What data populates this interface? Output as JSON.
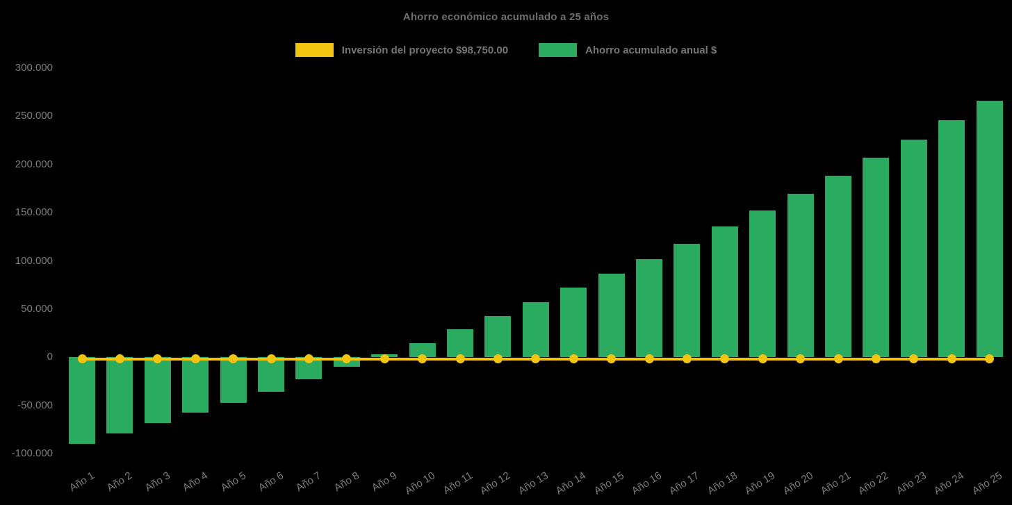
{
  "title": "Ahorro económico acumulado a 25 años",
  "colors": {
    "background": "#000000",
    "investment_yellow": "#F2C40F",
    "savings_green": "#2BAB5F",
    "title_text": "#6e6e6e",
    "axis_text": "#7d7d7d",
    "legend_text": "#757575"
  },
  "legend": {
    "items": [
      {
        "id": "investment",
        "label": "Inversión del proyecto $98,750.00",
        "color": "#F2C40F"
      },
      {
        "id": "savings",
        "label": "Ahorro acumulado anual $",
        "color": "#2BAB5F"
      }
    ]
  },
  "chart_data": {
    "type": "bar",
    "title": "Ahorro económico acumulado a 25 años",
    "categories": [
      "Año 1",
      "Año 2",
      "Año 3",
      "Año 4",
      "Año 5",
      "Año 6",
      "Año 7",
      "Año 8",
      "Año 9",
      "Año 10",
      "Año 11",
      "Año 12",
      "Año 13",
      "Año 14",
      "Año 15",
      "Año 16",
      "Año 17",
      "Año 18",
      "Año 19",
      "Año 20",
      "Año 21",
      "Año 22",
      "Año 23",
      "Año 24",
      "Año 25"
    ],
    "series": [
      {
        "name": "Inversión del proyecto $98,750.00",
        "type": "line",
        "color": "#F2C40F",
        "marker": "circle",
        "values": [
          0,
          0,
          0,
          0,
          0,
          0,
          0,
          0,
          0,
          0,
          0,
          0,
          0,
          0,
          0,
          0,
          0,
          0,
          0,
          0,
          0,
          0,
          0,
          0,
          0
        ]
      },
      {
        "name": "Ahorro acumulado anual $",
        "type": "bar",
        "color": "#2BAB5F",
        "values": [
          -90000,
          -79000,
          -68500,
          -57500,
          -47000,
          -35500,
          -22500,
          -10000,
          3000,
          15000,
          29000,
          42500,
          57000,
          72000,
          87000,
          102000,
          118000,
          135500,
          152000,
          169500,
          188000,
          207000,
          226000,
          246000,
          266000
        ]
      }
    ],
    "xlabel": "",
    "ylabel": "",
    "ylim": [
      -100000,
      300000
    ],
    "ytick_step": 50000,
    "ytick_labels": [
      "300.000",
      "250.000",
      "200.000",
      "150.000",
      "100.000",
      "50.000",
      "0",
      "-50.000",
      "-100.000"
    ],
    "ytick_values": [
      300000,
      250000,
      200000,
      150000,
      100000,
      50000,
      0,
      -50000,
      -100000
    ],
    "grid": false,
    "legend_position": "top",
    "x_label_rotation_deg": 32,
    "investment_amount_label": "$98,750.00"
  }
}
